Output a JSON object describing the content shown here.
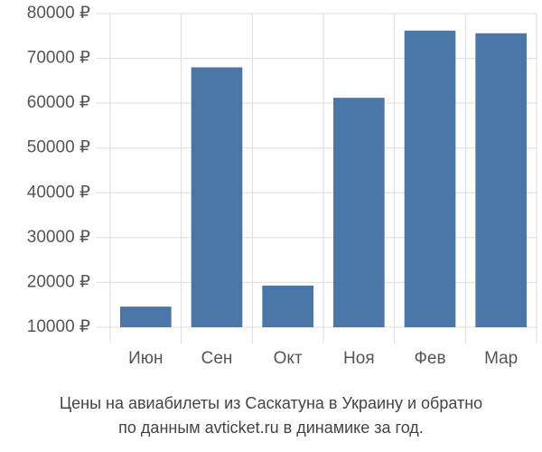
{
  "chart_data": {
    "type": "bar",
    "title_lines": [
      "Цены на авиабилеты из Саскатуна в Украину и обратно",
      "по данным avticket.ru в динамике за год."
    ],
    "categories": [
      "Июн",
      "Сен",
      "Окт",
      "Ноя",
      "Фев",
      "Мар"
    ],
    "values": [
      14600,
      68000,
      19300,
      61200,
      76200,
      75600
    ],
    "color": "#4a76a8",
    "ylim": [
      10000,
      80000
    ],
    "yticks": [
      {
        "value": 10000,
        "label": "10000 ₽"
      },
      {
        "value": 20000,
        "label": "20000 ₽"
      },
      {
        "value": 30000,
        "label": "30000 ₽"
      },
      {
        "value": 40000,
        "label": "40000 ₽"
      },
      {
        "value": 50000,
        "label": "50000 ₽"
      },
      {
        "value": 60000,
        "label": "60000 ₽"
      },
      {
        "value": 70000,
        "label": "70000 ₽"
      },
      {
        "value": 80000,
        "label": "80000 ₽"
      }
    ],
    "grid": true
  }
}
